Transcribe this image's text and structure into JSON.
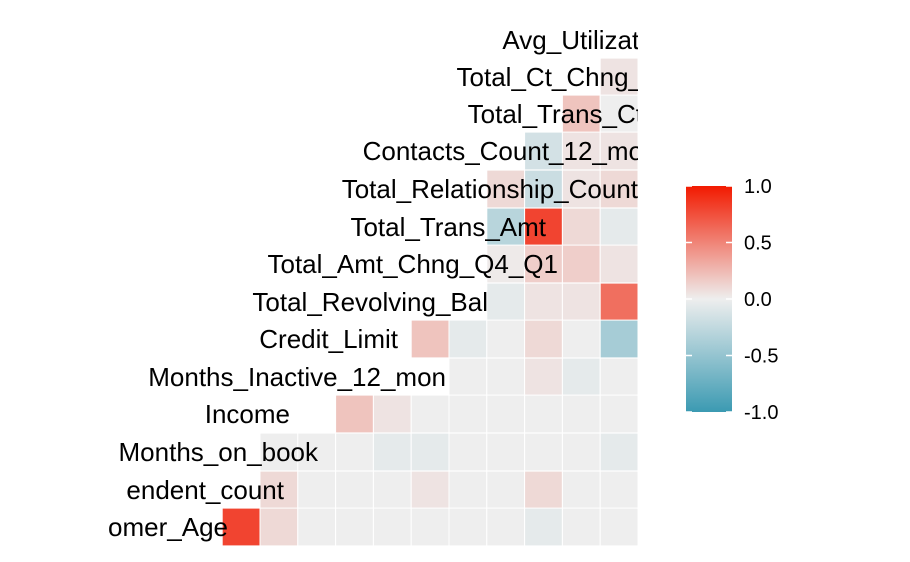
{
  "chart_data": {
    "type": "heatmap",
    "title": "",
    "xlabel": "",
    "ylabel": "",
    "variables_visible": [
      "omer_Age",
      "endent_count",
      "Months_on_book",
      "Income",
      "Months_Inactive_12_mon",
      "Credit_Limit",
      "Total_Revolving_Bal",
      "Total_Amt_Chng_Q4_Q1",
      "Total_Trans_Amt",
      "Total_Relationship_Count",
      "Contacts_Count_12_mo",
      "Total_Trans_Ct",
      "Total_Ct_Chng_",
      "Avg_Utilizati"
    ],
    "rows": [
      {
        "label": "Avg_Utilizati",
        "values": []
      },
      {
        "label": "Total_Ct_Chng_",
        "values": [
          0.05
        ]
      },
      {
        "label": "Total_Trans_Ct",
        "values": [
          0.2,
          0.0
        ]
      },
      {
        "label": "Contacts_Count_12_mo",
        "values": [
          -0.15,
          0.05,
          0.05
        ]
      },
      {
        "label": "Total_Relationship_Count",
        "values": [
          0.1,
          -0.2,
          0.05,
          0.1
        ]
      },
      {
        "label": "Total_Trans_Amt",
        "values": [
          -0.3,
          0.8,
          0.1,
          -0.05
        ]
      },
      {
        "label": "Total_Amt_Chng_Q4_Q1",
        "values": [
          0.02,
          0.15,
          0.15,
          0.05
        ]
      },
      {
        "label": "Total_Revolving_Bal",
        "values": [
          -0.05,
          0.05,
          0.05,
          0.6
        ]
      },
      {
        "label": "Credit_Limit",
        "values": [
          0.2,
          -0.05,
          0.0,
          0.1,
          0.0,
          -0.4
        ]
      },
      {
        "label": "Months_Inactive_12_mon",
        "values": [
          0.0,
          0.0,
          0.05,
          -0.05,
          0.0
        ]
      },
      {
        "label": "Income",
        "values": [
          0.2,
          0.05,
          0.0,
          0.0,
          0.0,
          0.0,
          0.0,
          0.0
        ]
      },
      {
        "label": "Months_on_book",
        "values": [
          0.0,
          0.0,
          0.0,
          -0.05,
          -0.05,
          0.0,
          0.0,
          0.0,
          0.0,
          -0.05
        ]
      },
      {
        "label": "endent_count",
        "values": [
          0.1,
          0.0,
          0.0,
          0.0,
          0.05,
          0.0,
          0.0,
          0.1,
          0.0,
          0.0
        ]
      },
      {
        "label": "omer_Age",
        "values": [
          0.8,
          0.1,
          0.0,
          0.0,
          0.0,
          0.0,
          0.0,
          0.0,
          -0.05,
          0.0,
          0.0
        ]
      }
    ],
    "legend": {
      "position": "right",
      "ticks": [
        "1.0",
        "0.5",
        "0.0",
        "-0.5",
        "-1.0"
      ],
      "range": [
        -1.0,
        1.0
      ],
      "colors": {
        "low": "#3B9AB2",
        "mid": "#EEEEEE",
        "high": "#F21A00"
      }
    },
    "grid": true
  }
}
